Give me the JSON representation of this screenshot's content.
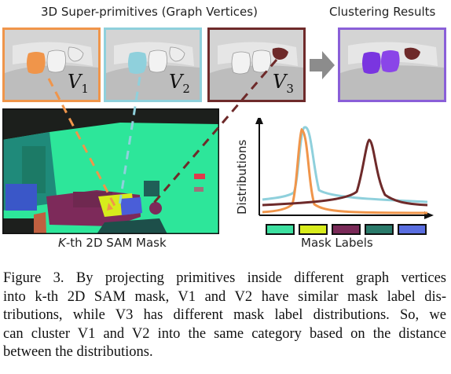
{
  "figure": {
    "title_left": "3D Super-primitives (Graph Vertices)",
    "title_right": "Clustering Results",
    "vertex_labels": [
      {
        "symbol": "V",
        "sub": "1"
      },
      {
        "symbol": "V",
        "sub": "2"
      },
      {
        "symbol": "V",
        "sub": "3"
      }
    ],
    "thumb_colors": {
      "v1": "#f0954a",
      "v2": "#8fd0dc",
      "v3": "#6e2a2a",
      "result": "#8a5fd8"
    },
    "mask_caption_k": "K",
    "mask_caption_rest": "-th 2D SAM Mask",
    "dist_ylabel": "Distributions",
    "dist_xlabel": "Mask Labels",
    "mask_label_colors": [
      "#3de0a0",
      "#d8ec1c",
      "#7a2a58",
      "#2a7a6a",
      "#5a6ee0"
    ],
    "curve_colors": {
      "v1": "#f0954a",
      "v2": "#8fd0dc",
      "v3": "#6e2a2a"
    }
  },
  "caption": {
    "lines": [
      "Figure 3.  By projecting primitives inside different graph vertices",
      "into k-th 2D SAM mask, V1 and V2 have similar mask label dis-",
      "tributions, while V3 has different mask label distributions. So, we",
      "can cluster V1 and V2 into the same category based on the distance",
      "between the distributions."
    ]
  }
}
